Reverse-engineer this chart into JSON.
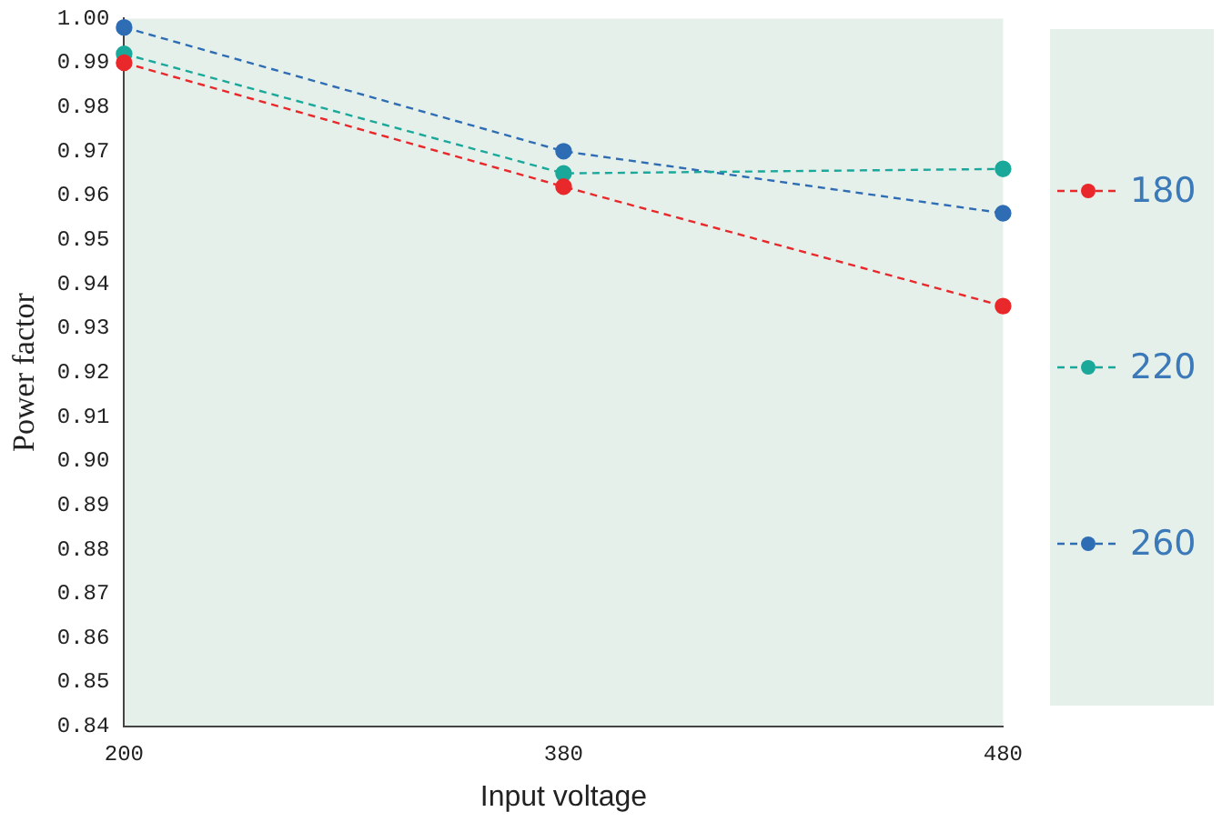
{
  "chart_data": {
    "type": "line",
    "xlabel": "Input voltage",
    "ylabel": "Power factor",
    "categories": [
      "200",
      "380",
      "480"
    ],
    "series": [
      {
        "name": "180",
        "color": "#e8282a",
        "values": [
          0.99,
          0.962,
          0.935
        ]
      },
      {
        "name": "220",
        "color": "#19a89a",
        "values": [
          0.992,
          0.965,
          0.966
        ]
      },
      {
        "name": "260",
        "color": "#2e6db4",
        "values": [
          0.998,
          0.97,
          0.956
        ]
      }
    ],
    "ylim": [
      0.84,
      1.0
    ],
    "yticks": [
      0.84,
      0.85,
      0.86,
      0.87,
      0.88,
      0.89,
      {
        "value": 0.9,
        "label": "0.90"
      },
      0.91,
      0.92,
      0.93,
      0.94,
      0.95,
      0.96,
      0.97,
      0.98,
      0.99,
      {
        "value": 1,
        "label": "1.00"
      }
    ],
    "grid": false,
    "legend": "right",
    "marker": "circle",
    "line_style": "dashed"
  }
}
